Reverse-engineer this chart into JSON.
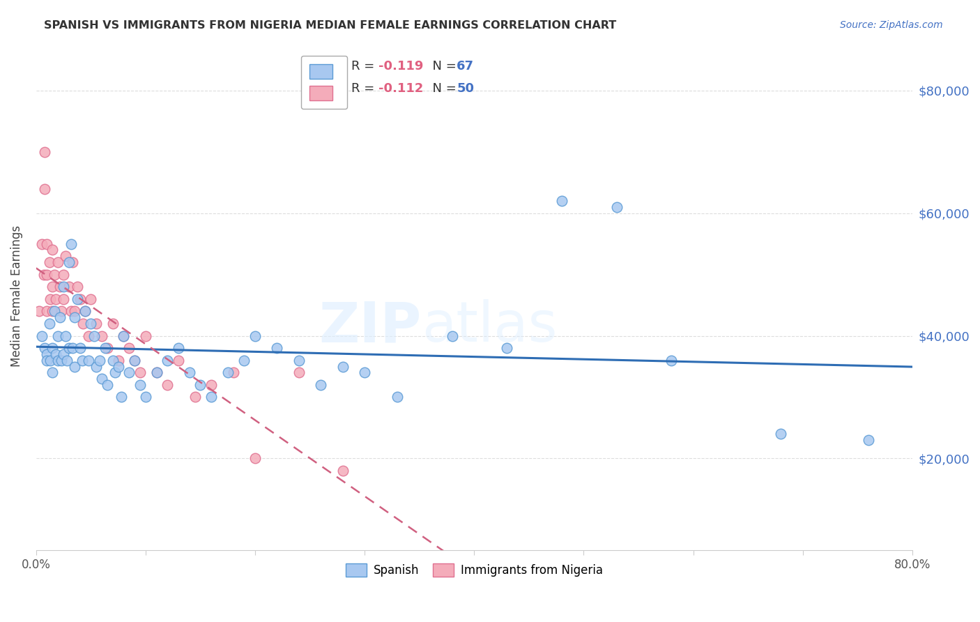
{
  "title": "SPANISH VS IMMIGRANTS FROM NIGERIA MEDIAN FEMALE EARNINGS CORRELATION CHART",
  "source": "Source: ZipAtlas.com",
  "ylabel": "Median Female Earnings",
  "ytick_labels": [
    "$20,000",
    "$40,000",
    "$60,000",
    "$80,000"
  ],
  "ytick_values": [
    20000,
    40000,
    60000,
    80000
  ],
  "y_min": 5000,
  "y_max": 88000,
  "x_min": 0.0,
  "x_max": 0.8,
  "watermark": "ZIPatlas",
  "R_spanish": -0.119,
  "N_spanish": 67,
  "R_nigeria": -0.112,
  "N_nigeria": 50,
  "spanish_color": "#A8C8F0",
  "nigeria_color": "#F4ACBA",
  "spanish_edge_color": "#5B9BD5",
  "nigeria_edge_color": "#E07090",
  "spanish_line_color": "#2E6DB4",
  "nigeria_line_color": "#D06080",
  "spanish_x": [
    0.005,
    0.008,
    0.01,
    0.01,
    0.012,
    0.013,
    0.015,
    0.015,
    0.017,
    0.018,
    0.02,
    0.02,
    0.022,
    0.023,
    0.025,
    0.025,
    0.027,
    0.028,
    0.03,
    0.03,
    0.032,
    0.033,
    0.035,
    0.035,
    0.038,
    0.04,
    0.042,
    0.045,
    0.048,
    0.05,
    0.053,
    0.055,
    0.058,
    0.06,
    0.063,
    0.065,
    0.07,
    0.072,
    0.075,
    0.078,
    0.08,
    0.085,
    0.09,
    0.095,
    0.1,
    0.11,
    0.12,
    0.13,
    0.14,
    0.15,
    0.16,
    0.175,
    0.19,
    0.2,
    0.22,
    0.24,
    0.26,
    0.28,
    0.3,
    0.33,
    0.38,
    0.43,
    0.48,
    0.53,
    0.58,
    0.68,
    0.76
  ],
  "spanish_y": [
    40000,
    38000,
    37000,
    36000,
    42000,
    36000,
    38000,
    34000,
    44000,
    37000,
    40000,
    36000,
    43000,
    36000,
    48000,
    37000,
    40000,
    36000,
    52000,
    38000,
    55000,
    38000,
    43000,
    35000,
    46000,
    38000,
    36000,
    44000,
    36000,
    42000,
    40000,
    35000,
    36000,
    33000,
    38000,
    32000,
    36000,
    34000,
    35000,
    30000,
    40000,
    34000,
    36000,
    32000,
    30000,
    34000,
    36000,
    38000,
    34000,
    32000,
    30000,
    34000,
    36000,
    40000,
    38000,
    36000,
    32000,
    35000,
    34000,
    30000,
    40000,
    38000,
    62000,
    61000,
    36000,
    24000,
    23000
  ],
  "nigeria_x": [
    0.003,
    0.005,
    0.007,
    0.008,
    0.008,
    0.01,
    0.01,
    0.01,
    0.012,
    0.013,
    0.015,
    0.015,
    0.015,
    0.017,
    0.018,
    0.02,
    0.022,
    0.023,
    0.025,
    0.025,
    0.027,
    0.03,
    0.032,
    0.033,
    0.035,
    0.038,
    0.04,
    0.043,
    0.045,
    0.048,
    0.05,
    0.055,
    0.06,
    0.065,
    0.07,
    0.075,
    0.08,
    0.085,
    0.09,
    0.095,
    0.1,
    0.11,
    0.12,
    0.13,
    0.145,
    0.16,
    0.18,
    0.2,
    0.24,
    0.28
  ],
  "nigeria_y": [
    44000,
    55000,
    50000,
    70000,
    64000,
    55000,
    50000,
    44000,
    52000,
    46000,
    54000,
    48000,
    44000,
    50000,
    46000,
    52000,
    48000,
    44000,
    50000,
    46000,
    53000,
    48000,
    44000,
    52000,
    44000,
    48000,
    46000,
    42000,
    44000,
    40000,
    46000,
    42000,
    40000,
    38000,
    42000,
    36000,
    40000,
    38000,
    36000,
    34000,
    40000,
    34000,
    32000,
    36000,
    30000,
    32000,
    34000,
    20000,
    34000,
    18000
  ]
}
